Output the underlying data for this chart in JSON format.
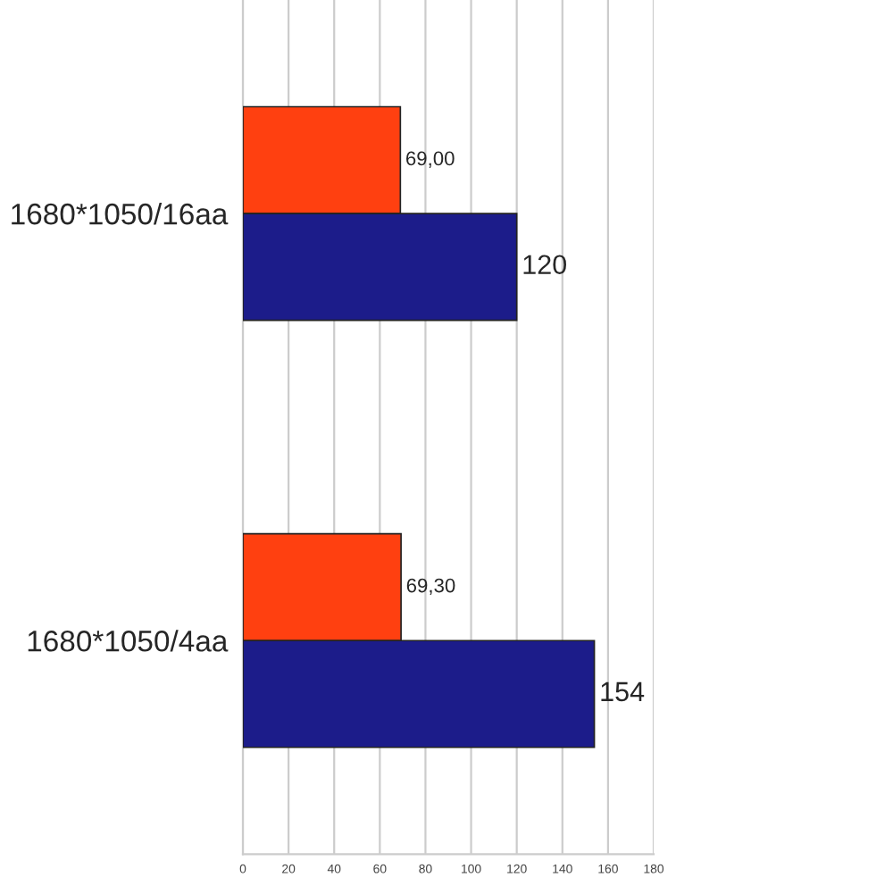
{
  "chart_data": {
    "type": "bar",
    "orientation": "horizontal",
    "categories": [
      "1680*1050/16aa",
      "1680*1050/4aa"
    ],
    "series": [
      {
        "color": "#ff4010",
        "values": [
          69.0,
          69.3
        ],
        "value_labels": [
          "69,00",
          "69,30"
        ]
      },
      {
        "color": "#1c1c8a",
        "values": [
          120,
          154
        ],
        "value_labels": [
          "120",
          "154"
        ]
      }
    ],
    "xlim": [
      0,
      180
    ],
    "xticks": [
      0,
      20,
      40,
      60,
      80,
      100,
      120,
      140,
      160,
      180
    ],
    "grid": "x"
  }
}
